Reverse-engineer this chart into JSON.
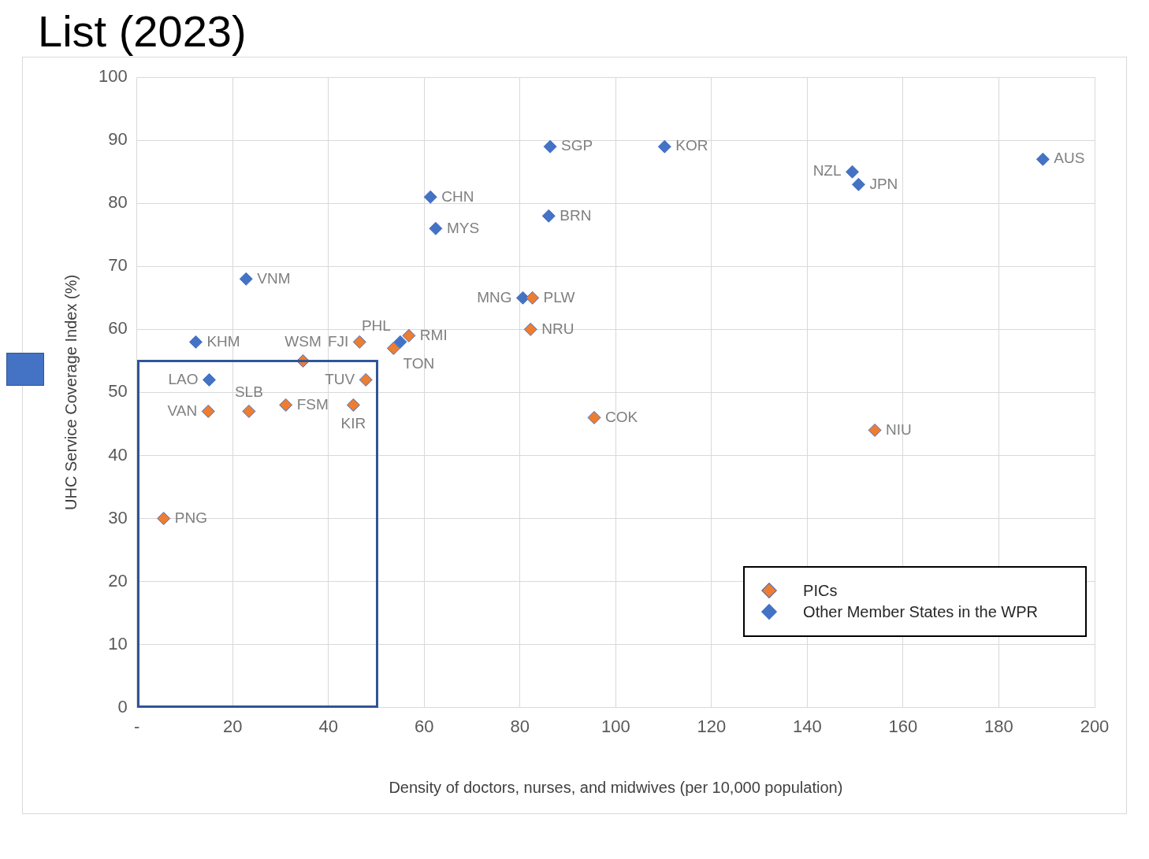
{
  "chart_data": {
    "type": "scatter",
    "title": "List (2023)",
    "xlabel": "Density of doctors, nurses, and midwives (per 10,000 population)",
    "ylabel": "UHC Service Coverage Index (%)",
    "xlim": [
      0,
      200
    ],
    "xticks": [
      {
        "value": 0,
        "label": "-"
      },
      20,
      40,
      60,
      80,
      100,
      120,
      140,
      160,
      180,
      200
    ],
    "ylim": [
      0,
      100
    ],
    "yticks": [
      0,
      10,
      20,
      30,
      40,
      50,
      60,
      70,
      80,
      90,
      100
    ],
    "grid": true,
    "legend": "bottom right",
    "marker": "diamond",
    "series": [
      {
        "name": "PICs",
        "color": "#ed7d31",
        "x": [
          82.6,
          82.2,
          46.5,
          56.8,
          53.6,
          34.7,
          47.8,
          31.1,
          45.2,
          14.9,
          23.4,
          95.5,
          154.1,
          5.6
        ],
        "values": [
          65,
          60,
          58,
          59,
          57,
          55,
          52,
          48,
          48,
          47,
          47,
          46,
          44,
          30
        ]
      },
      {
        "name": "Other Member States in the WPR",
        "color": "#4472c4",
        "x": [
          86.3,
          110.2,
          149.4,
          150.7,
          189.2,
          61.3,
          62.4,
          86,
          22.8,
          80.6,
          12.3,
          15.1,
          55
        ],
        "values": [
          89,
          89,
          85,
          83,
          87,
          81,
          76,
          78,
          68,
          65,
          58,
          52,
          58
        ]
      }
    ],
    "annotations": [
      {
        "text": "PLW",
        "x": 82.6,
        "y": 65
      },
      {
        "text": "NRU",
        "x": 82.2,
        "y": 60
      },
      {
        "text": "FJI",
        "x": 46.5,
        "y": 58
      },
      {
        "text": "RMI",
        "x": 56.8,
        "y": 59
      },
      {
        "text": "TON",
        "x": 53.6,
        "y": 57
      },
      {
        "text": "WSM",
        "x": 34.7,
        "y": 55
      },
      {
        "text": "TUV",
        "x": 47.8,
        "y": 52
      },
      {
        "text": "FSM",
        "x": 31.1,
        "y": 48
      },
      {
        "text": "KIR",
        "x": 45.2,
        "y": 48
      },
      {
        "text": "VAN",
        "x": 14.9,
        "y": 47
      },
      {
        "text": "SLB",
        "x": 23.4,
        "y": 47
      },
      {
        "text": "COK",
        "x": 95.5,
        "y": 46
      },
      {
        "text": "NIU",
        "x": 154.1,
        "y": 44
      },
      {
        "text": "PNG",
        "x": 5.6,
        "y": 30
      },
      {
        "text": "SGP",
        "x": 86.3,
        "y": 89
      },
      {
        "text": "KOR",
        "x": 110.2,
        "y": 89
      },
      {
        "text": "NZL",
        "x": 149.4,
        "y": 85
      },
      {
        "text": "JPN",
        "x": 150.7,
        "y": 83
      },
      {
        "text": "AUS",
        "x": 189.2,
        "y": 87
      },
      {
        "text": "CHN",
        "x": 61.3,
        "y": 81
      },
      {
        "text": "MYS",
        "x": 62.4,
        "y": 76
      },
      {
        "text": "BRN",
        "x": 86,
        "y": 78
      },
      {
        "text": "VNM",
        "x": 22.8,
        "y": 68
      },
      {
        "text": "MNG",
        "x": 80.6,
        "y": 65
      },
      {
        "text": "KHM",
        "x": 12.3,
        "y": 58
      },
      {
        "text": "LAO",
        "x": 15.1,
        "y": 52
      },
      {
        "text": "PHL",
        "x": 55,
        "y": 58
      }
    ]
  }
}
